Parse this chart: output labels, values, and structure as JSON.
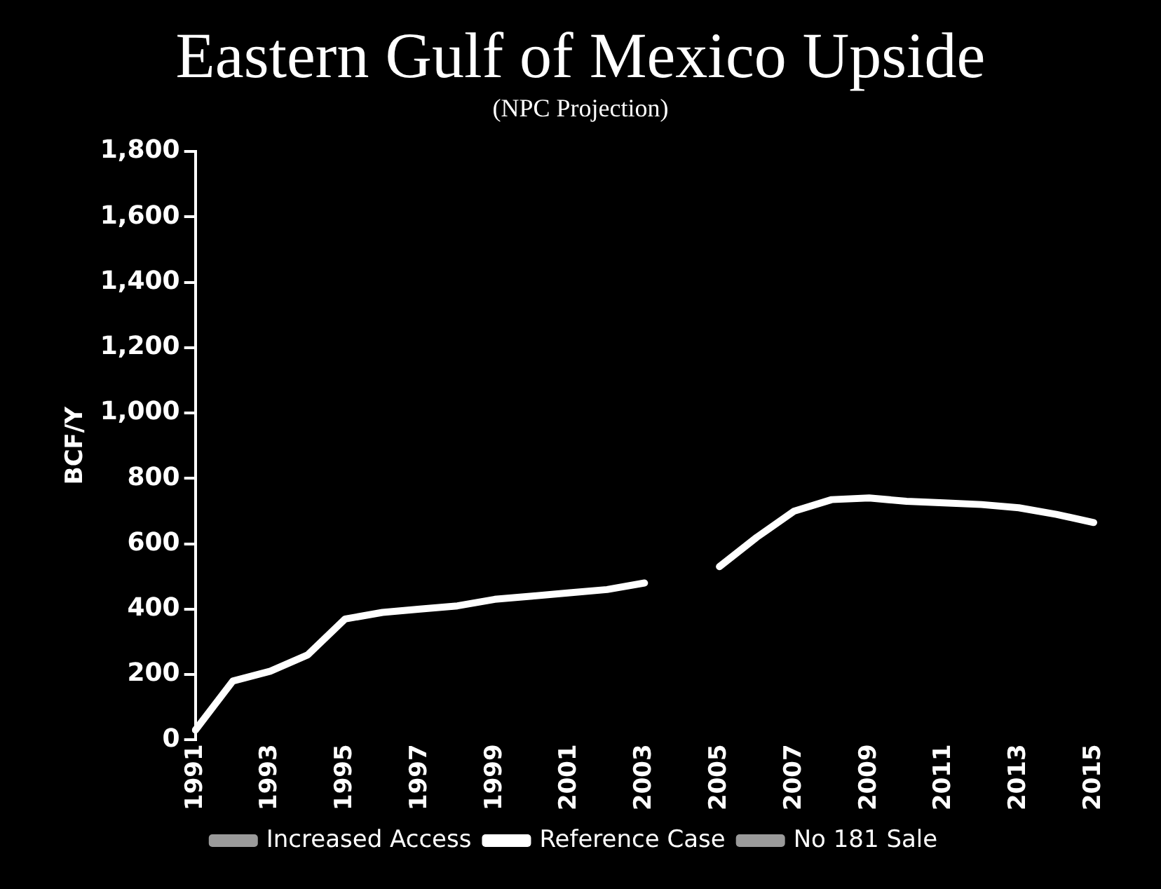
{
  "chart_data": {
    "type": "line",
    "title": "Eastern Gulf of Mexico Upside",
    "subtitle": "(NPC Projection)",
    "ylabel": "BCF/Y",
    "categories": [
      "1991",
      null,
      "1993",
      null,
      "1995",
      null,
      "1997",
      null,
      "1999",
      null,
      "2001",
      null,
      "2003",
      null,
      "2005",
      null,
      "2007",
      null,
      "2009",
      null,
      "2011",
      null,
      "2013",
      null,
      "2015"
    ],
    "series": [
      {
        "name": "Increased Access",
        "color": "#9a9a9a",
        "values": [
          null,
          null,
          null,
          null,
          null,
          null,
          null,
          null,
          null,
          null,
          null,
          null,
          null,
          null,
          null,
          null,
          null,
          null,
          null,
          null,
          null,
          null,
          null,
          null,
          null
        ]
      },
      {
        "name": "Reference Case",
        "color": "#ffffff",
        "values": [
          30,
          180,
          210,
          260,
          370,
          390,
          400,
          410,
          430,
          440,
          450,
          460,
          480,
          null,
          530,
          620,
          700,
          735,
          740,
          730,
          725,
          720,
          710,
          690,
          665
        ]
      },
      {
        "name": "No 181 Sale",
        "color": "#9a9a9a",
        "values": [
          null,
          null,
          null,
          null,
          null,
          null,
          null,
          null,
          null,
          null,
          null,
          null,
          null,
          null,
          null,
          null,
          null,
          null,
          null,
          null,
          null,
          null,
          null,
          null,
          null
        ]
      }
    ],
    "ylim": [
      0,
      1800
    ],
    "yticks": [
      0,
      200,
      400,
      600,
      800,
      {
        "value": 1000,
        "label": "1,000"
      },
      {
        "value": 1200,
        "label": "1,200"
      },
      {
        "value": 1400,
        "label": "1,400"
      },
      {
        "value": 1600,
        "label": "1,600"
      },
      {
        "value": 1800,
        "label": "1,800"
      }
    ],
    "grid": false,
    "legend": "bottom",
    "marker": "none",
    "line_style": "solid"
  }
}
